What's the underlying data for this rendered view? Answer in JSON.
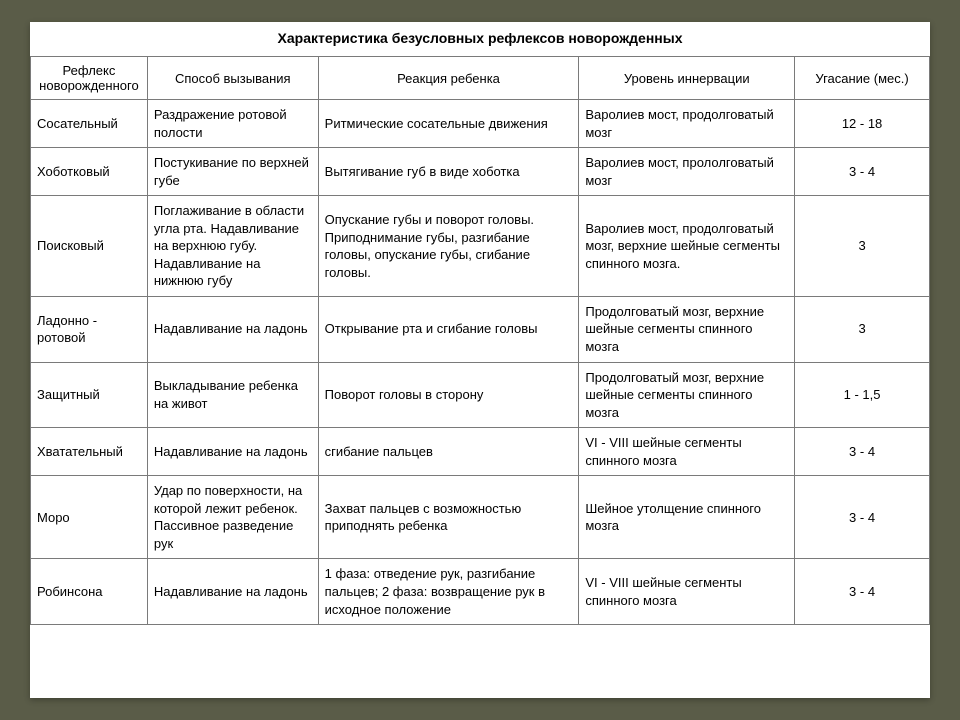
{
  "table": {
    "title": "Характеристика безусловных рефлексов новорожденных",
    "columns": [
      "Рефлекс новорожденного",
      "Способ вызывания",
      "Реакция ребенка",
      "Уровень иннервации",
      "Угасание (мес.)"
    ],
    "rows": [
      {
        "reflex": "Сосательный",
        "method": "Раздражение ротовой полости",
        "reaction": "Ритмические сосательные движения",
        "level": "Варолиев мост, продолговатый мозг",
        "fade": "12 - 18"
      },
      {
        "reflex": "Хоботковый",
        "method": "Постукивание по верхней губе",
        "reaction": "Вытягивание губ в виде хоботка",
        "level": "Варолиев мост, прололговатый мозг",
        "fade": "3 - 4"
      },
      {
        "reflex": "Поисковый",
        "method": "Поглаживание в области угла рта. Надавливание на верхнюю губу. Надавливание на нижнюю губу",
        "reaction": "Опускание губы и поворот головы. Приподнимание губы, разгибание головы, опускание губы, сгибание головы.",
        "level": "Варолиев мост, продолговатый мозг, верхние шейные сегменты спинного мозга.",
        "fade": "3"
      },
      {
        "reflex": "Ладонно - ротовой",
        "method": "Надавливание на ладонь",
        "reaction": "Открывание рта и сгибание головы",
        "level": "Продолговатый мозг, верхние шейные сегменты спинного мозга",
        "fade": "3"
      },
      {
        "reflex": "Защитный",
        "method": "Выкладывание ребенка на живот",
        "reaction": "Поворот головы в сторону",
        "level": "Продолговатый мозг, верхние шейные сегменты спинного мозга",
        "fade": "1 - 1,5"
      },
      {
        "reflex": "Хватательный",
        "method": "Надавливание на ладонь",
        "reaction": "сгибание пальцев",
        "level": "VI - VIII шейные сегменты спинного мозга",
        "fade": "3 - 4"
      },
      {
        "reflex": "Моро",
        "method": "Удар по поверхности, на которой лежит ребенок. Пассивное разведение рук",
        "reaction": "Захват пальцев с возможностью приподнять ребенка",
        "level": "Шейное утолщение спинного мозга",
        "fade": "3 - 4"
      },
      {
        "reflex": "Робинсона",
        "method": "Надавливание на ладонь",
        "reaction": "1 фаза: отведение рук, разгибание пальцев; 2 фаза: возвращение рук в исходное положение",
        "level": "VI - VIII шейные сегменты спинного мозга",
        "fade": "3 - 4"
      }
    ],
    "style": {
      "border_color": "#7a7a7a",
      "background_color": "#ffffff",
      "page_background": "#5a5c48",
      "font_family": "Arial",
      "title_fontsize": 14,
      "header_fontsize": 13,
      "cell_fontsize": 13,
      "column_widths_pct": [
        13,
        19,
        29,
        24,
        15
      ],
      "fade_column_align": "center"
    }
  }
}
